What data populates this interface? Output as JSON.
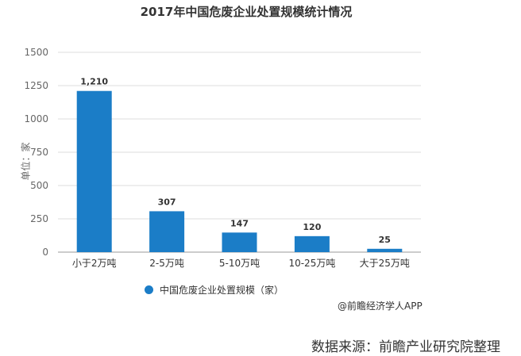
{
  "chart_data": {
    "type": "bar",
    "title": "2017年中国危废企业处置规模统计情况",
    "ylabel": "单位：家",
    "categories": [
      "小于2万吨",
      "2-5万吨",
      "5-10万吨",
      "10-25万吨",
      "大于25万吨"
    ],
    "series": [
      {
        "name": "中国危废企业处置规模（家）",
        "values": [
          1210,
          307,
          147,
          120,
          25
        ]
      }
    ],
    "data_labels": [
      "1,210",
      "307",
      "147",
      "120",
      "25"
    ],
    "yticks": [
      0,
      250,
      500,
      750,
      1000,
      1250,
      1500
    ],
    "ylim": [
      0,
      1500
    ],
    "grid": true,
    "legend": "bottom",
    "color": "#1b7dc7"
  },
  "credit": "@前瞻经济学人APP",
  "source": "数据来源：前瞻产业研究院整理"
}
